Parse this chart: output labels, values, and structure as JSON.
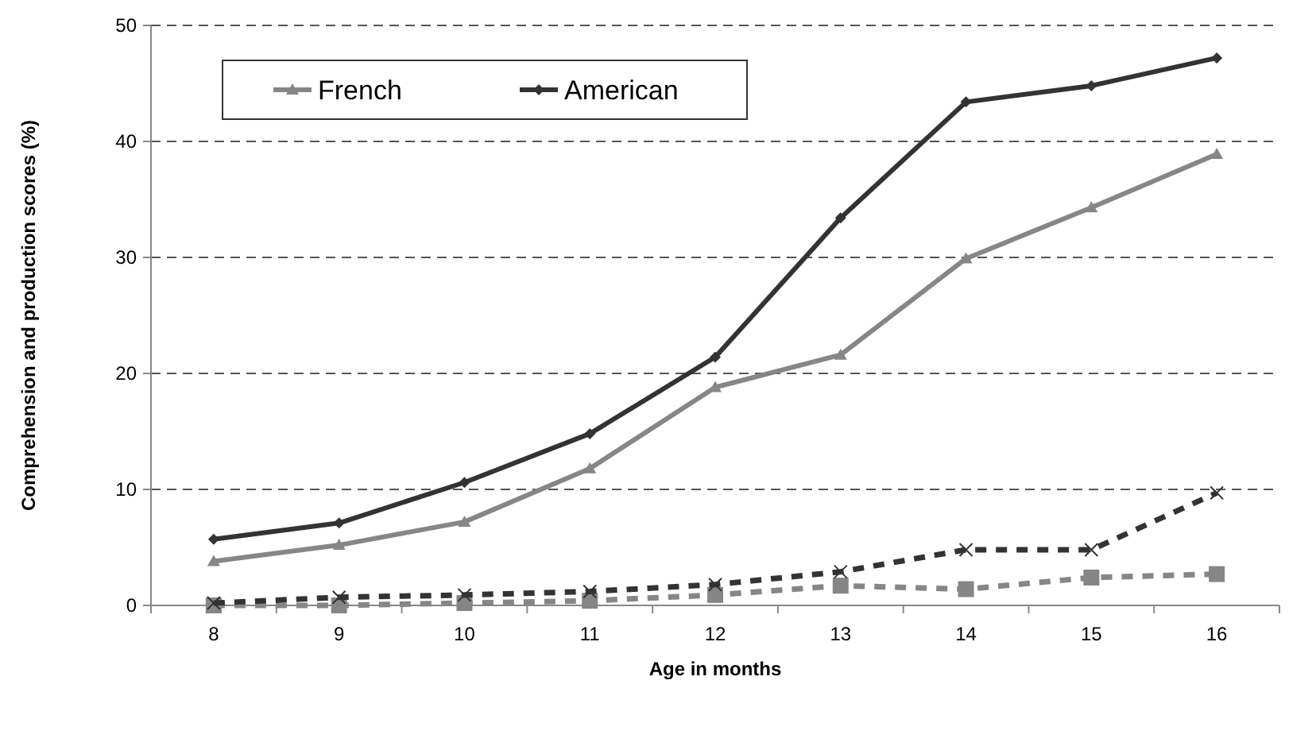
{
  "chart_data": {
    "type": "line",
    "xlabel": "Age in months",
    "ylabel": "Comprehension and production scores (%)",
    "categories": [
      "8",
      "9",
      "10",
      "11",
      "12",
      "13",
      "14",
      "15",
      "16"
    ],
    "ylim": [
      0,
      50
    ],
    "yticks": [
      0,
      10,
      20,
      30,
      40,
      50
    ],
    "grid": "y",
    "legend": "top left",
    "series": [
      {
        "name": "French",
        "color": "#868686",
        "marker": "triangle",
        "line_style": "solid",
        "values": [
          3.8,
          5.2,
          7.2,
          11.8,
          18.8,
          21.6,
          29.9,
          34.3,
          38.9
        ]
      },
      {
        "name": "American",
        "color": "#333333",
        "marker": "diamond",
        "line_style": "solid",
        "values": [
          5.7,
          7.1,
          10.6,
          14.8,
          21.4,
          33.4,
          43.4,
          44.8,
          47.2
        ]
      },
      {
        "color": "#868686",
        "marker": "square",
        "line_style": "dashed",
        "values": [
          0,
          0,
          0.2,
          0.4,
          0.9,
          1.7,
          1.4,
          2.4,
          2.7
        ]
      },
      {
        "color": "#333333",
        "marker": "cross",
        "line_style": "dashed",
        "values": [
          0.2,
          0.7,
          0.9,
          1.2,
          1.8,
          2.9,
          4.8,
          4.8,
          9.7
        ]
      }
    ]
  }
}
